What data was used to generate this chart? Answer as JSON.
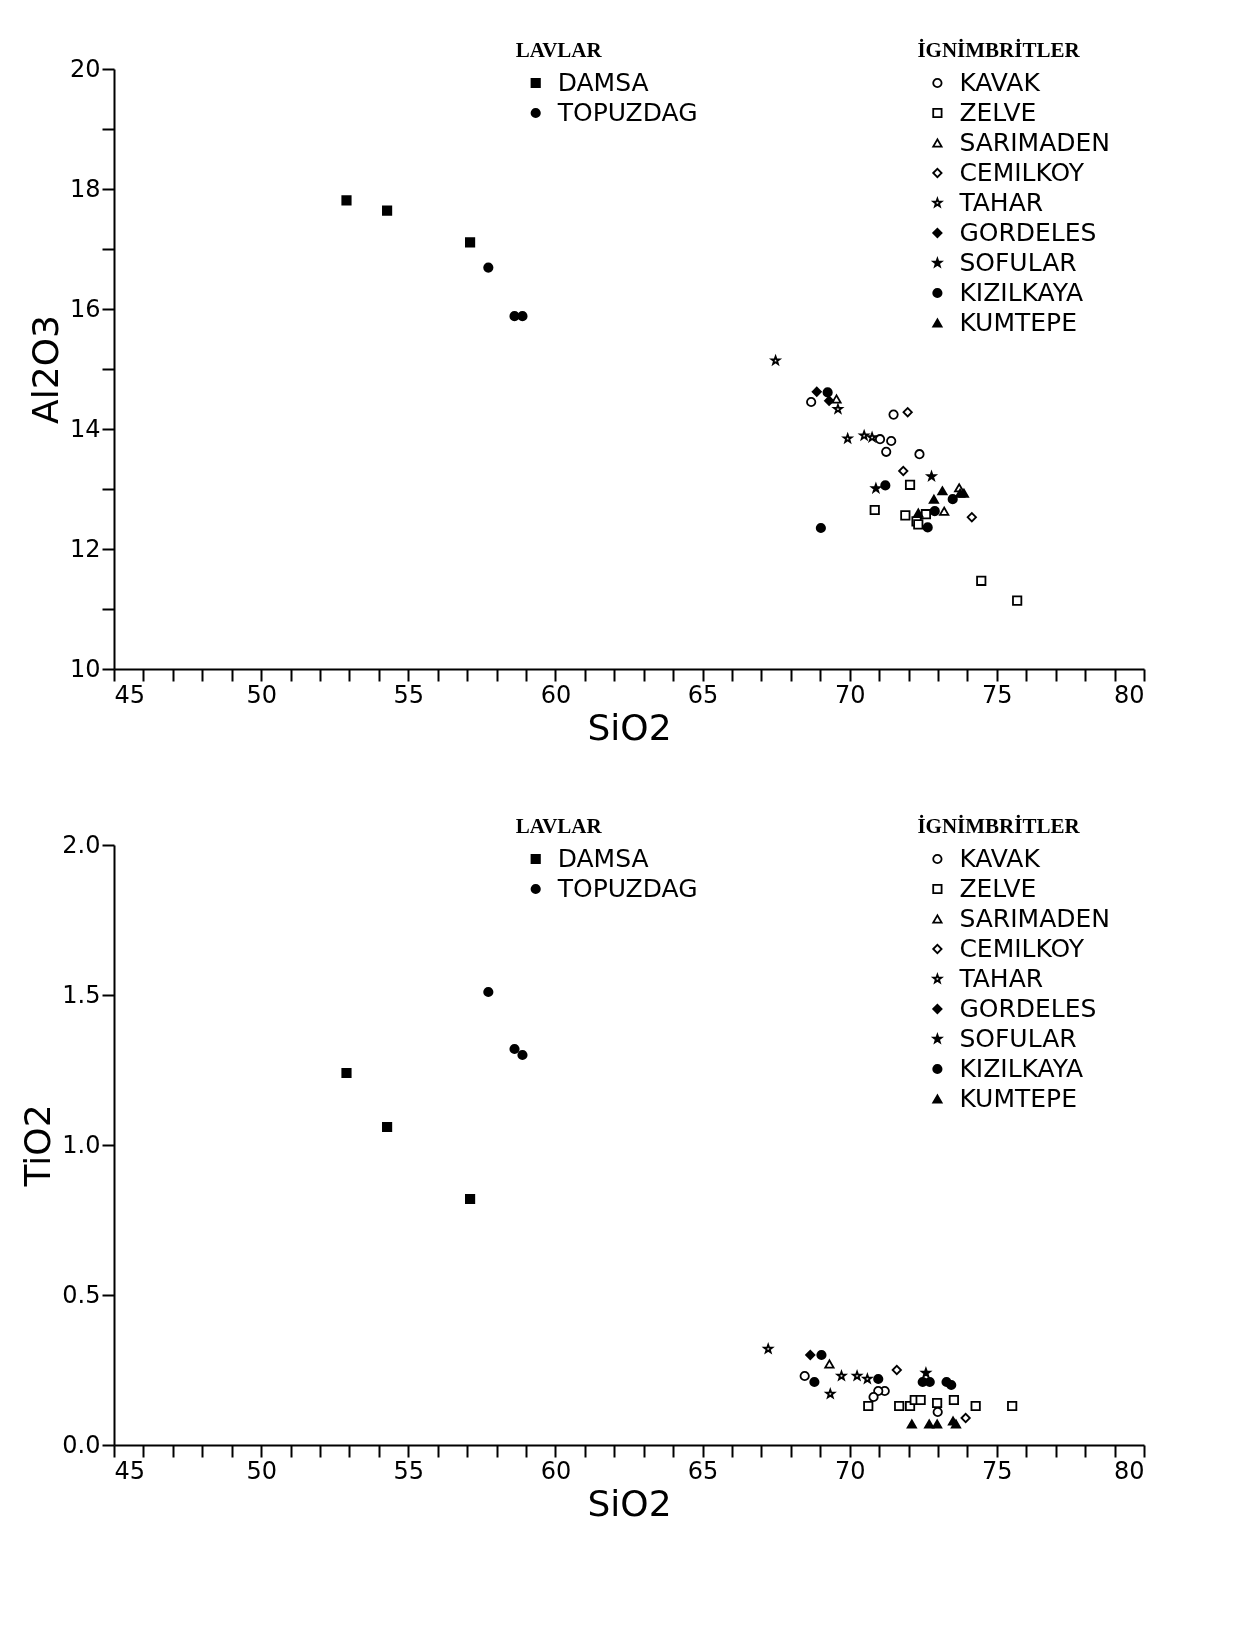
{
  "chart_data": [
    {
      "type": "scatter",
      "xlabel": "SiO2",
      "ylabel": "Al2O3",
      "xlim": [
        45,
        80
      ],
      "ylim": [
        10,
        20
      ],
      "grid": false,
      "legend": "top right",
      "legend_title": [
        "LAVLAR",
        "İGNİMBRİTLER"
      ],
      "xticks": [
        45,
        {
          "value": 46,
          "label": null
        },
        {
          "value": 47,
          "label": null
        },
        {
          "value": 48,
          "label": null
        },
        {
          "value": 49,
          "label": null
        },
        50,
        {
          "value": 51,
          "label": null
        },
        {
          "value": 52,
          "label": null
        },
        {
          "value": 53,
          "label": null
        },
        {
          "value": 54,
          "label": null
        },
        55,
        {
          "value": 56,
          "label": null
        },
        {
          "value": 57,
          "label": null
        },
        {
          "value": 58,
          "label": null
        },
        {
          "value": 59,
          "label": null
        },
        60,
        {
          "value": 61,
          "label": null
        },
        {
          "value": 62,
          "label": null
        },
        {
          "value": 63,
          "label": null
        },
        {
          "value": 64,
          "label": null
        },
        65,
        {
          "value": 66,
          "label": null
        },
        {
          "value": 67,
          "label": null
        },
        {
          "value": 68,
          "label": null
        },
        {
          "value": 69,
          "label": null
        },
        70,
        {
          "value": 71,
          "label": null
        },
        {
          "value": 72,
          "label": null
        },
        {
          "value": 73,
          "label": null
        },
        {
          "value": 74,
          "label": null
        },
        75,
        {
          "value": 76,
          "label": null
        },
        {
          "value": 77,
          "label": null
        },
        {
          "value": 78,
          "label": null
        },
        {
          "value": 79,
          "label": null
        },
        80
      ],
      "yticks": [
        10,
        {
          "value": 11,
          "label": null
        },
        12,
        {
          "value": 13,
          "label": null
        },
        14,
        {
          "value": 15,
          "label": null
        },
        16,
        {
          "value": 17,
          "label": null
        },
        18,
        {
          "value": 19,
          "label": null
        },
        20
      ],
      "series": [
        {
          "name": "DAMSA",
          "marker": "square",
          "color": "#000000",
          "x": [
            52.9,
            54.28,
            57.1
          ],
          "values": [
            17.81,
            17.64,
            17.11
          ]
        },
        {
          "name": "TOPUZDAG",
          "marker": "circle",
          "color": "#000000",
          "x": [
            57.72,
            58.61,
            58.88
          ],
          "values": [
            16.69,
            15.88,
            15.88
          ]
        },
        {
          "name": "KAVAK",
          "marker": "circle",
          "color": "#000000",
          "x": [
            68.69,
            71.49,
            71.03,
            71.41,
            71.24,
            72.37
          ],
          "values": [
            14.45,
            14.24,
            13.83,
            13.8,
            13.62,
            13.58
          ]
        },
        {
          "name": "ZELVE",
          "marker": "square",
          "color": "#000000",
          "x": [
            72.05,
            70.85,
            71.89,
            72.59,
            72.27,
            72.33,
            74.47,
            75.69
          ],
          "values": [
            13.07,
            12.65,
            12.56,
            12.58,
            12.46,
            12.41,
            11.47,
            11.14
          ]
        },
        {
          "name": "SARIMADEN",
          "marker": "triangle",
          "color": "#000000",
          "x": [
            69.55,
            73.21,
            73.72
          ],
          "values": [
            14.5,
            12.63,
            13.02
          ]
        },
        {
          "name": "CEMILKOY",
          "marker": "diamond",
          "color": "#000000",
          "x": [
            71.97,
            71.82,
            74.15
          ],
          "values": [
            14.28,
            13.3,
            12.53
          ]
        },
        {
          "name": "TAHAR",
          "marker": "star",
          "color": "#000000",
          "x": [
            67.48,
            69.6,
            69.93,
            70.49,
            70.76
          ],
          "values": [
            15.14,
            14.33,
            13.84,
            13.89,
            13.86
          ]
        },
        {
          "name": "GORDELES",
          "marker": "diamond",
          "color": "#000000",
          "x": [
            68.88,
            69.3
          ],
          "values": [
            14.62,
            14.47
          ]
        },
        {
          "name": "SOFULAR",
          "marker": "star",
          "color": "#000000",
          "x": [
            72.78,
            70.89
          ],
          "values": [
            13.21,
            13.01
          ]
        },
        {
          "name": "KIZILKAYA",
          "marker": "circle",
          "color": "#000000",
          "x": [
            69.25,
            71.21,
            72.65,
            72.89,
            73.5,
            69.02
          ],
          "values": [
            14.61,
            13.06,
            12.36,
            12.63,
            12.83,
            12.35
          ]
        },
        {
          "name": "KUMTEPE",
          "marker": "triangle",
          "color": "#000000",
          "x": [
            72.33,
            72.86,
            73.15,
            73.75,
            73.88
          ],
          "values": [
            12.6,
            12.83,
            12.97,
            12.93,
            12.93
          ]
        }
      ]
    },
    {
      "type": "scatter",
      "xlabel": "SiO2",
      "ylabel": "TiO2",
      "xlim": [
        45,
        80
      ],
      "ylim": [
        0,
        2
      ],
      "grid": false,
      "legend": "top right",
      "legend_title": [
        "LAVLAR",
        "İGNİMBRİTLER"
      ],
      "xticks": [
        45,
        {
          "value": 46,
          "label": null
        },
        {
          "value": 47,
          "label": null
        },
        {
          "value": 48,
          "label": null
        },
        {
          "value": 49,
          "label": null
        },
        50,
        {
          "value": 51,
          "label": null
        },
        {
          "value": 52,
          "label": null
        },
        {
          "value": 53,
          "label": null
        },
        {
          "value": 54,
          "label": null
        },
        55,
        {
          "value": 56,
          "label": null
        },
        {
          "value": 57,
          "label": null
        },
        {
          "value": 58,
          "label": null
        },
        {
          "value": 59,
          "label": null
        },
        60,
        {
          "value": 61,
          "label": null
        },
        {
          "value": 62,
          "label": null
        },
        {
          "value": 63,
          "label": null
        },
        {
          "value": 64,
          "label": null
        },
        65,
        {
          "value": 66,
          "label": null
        },
        {
          "value": 67,
          "label": null
        },
        {
          "value": 68,
          "label": null
        },
        {
          "value": 69,
          "label": null
        },
        70,
        {
          "value": 71,
          "label": null
        },
        {
          "value": 72,
          "label": null
        },
        {
          "value": 73,
          "label": null
        },
        {
          "value": 74,
          "label": null
        },
        75,
        {
          "value": 76,
          "label": null
        },
        {
          "value": 77,
          "label": null
        },
        {
          "value": 78,
          "label": null
        },
        {
          "value": 79,
          "label": null
        },
        80
      ],
      "yticks": [
        {
          "value": 0,
          "label": "0.0"
        },
        0.5,
        {
          "value": 1,
          "label": "1.0"
        },
        1.5,
        {
          "value": 2,
          "label": "2.0"
        }
      ],
      "series": [
        {
          "name": "DAMSA",
          "marker": "square",
          "color": "#000000",
          "x": [
            52.9,
            54.28,
            57.1
          ],
          "values": [
            1.24,
            1.06,
            0.82
          ]
        },
        {
          "name": "TOPUZDAG",
          "marker": "circle",
          "color": "#000000",
          "x": [
            57.72,
            58.61,
            58.88
          ],
          "values": [
            1.51,
            1.32,
            1.3
          ]
        },
        {
          "name": "KAVAK",
          "marker": "circle",
          "color": "#000000",
          "x": [
            68.47,
            71.19,
            70.97,
            70.81,
            72.99
          ],
          "values": [
            0.23,
            0.18,
            0.18,
            0.16,
            0.11
          ]
        },
        {
          "name": "ZELVE",
          "marker": "square",
          "color": "#000000",
          "x": [
            70.63,
            71.68,
            72.05,
            72.21,
            72.41,
            72.97,
            73.54,
            74.28,
            75.52
          ],
          "values": [
            0.13,
            0.13,
            0.13,
            0.15,
            0.15,
            0.14,
            0.15,
            0.13,
            0.13
          ]
        },
        {
          "name": "SARIMADEN",
          "marker": "triangle",
          "color": "#000000",
          "x": [
            69.31
          ],
          "values": [
            0.27
          ]
        },
        {
          "name": "CEMILKOY",
          "marker": "diamond",
          "color": "#000000",
          "x": [
            71.6,
            73.94
          ],
          "values": [
            0.25,
            0.09
          ]
        },
        {
          "name": "TAHAR",
          "marker": "star",
          "color": "#000000",
          "x": [
            67.23,
            69.72,
            69.34,
            70.25,
            70.6
          ],
          "values": [
            0.32,
            0.23,
            0.17,
            0.23,
            0.22
          ]
        },
        {
          "name": "GORDELES",
          "marker": "diamond",
          "color": "#000000",
          "x": [
            68.66
          ],
          "values": [
            0.3
          ]
        },
        {
          "name": "SOFULAR",
          "marker": "star",
          "color": "#000000",
          "x": [
            72.59
          ],
          "values": [
            0.24
          ]
        },
        {
          "name": "KIZILKAYA",
          "marker": "circle",
          "color": "#000000",
          "x": [
            69.04,
            68.8,
            70.97,
            72.48,
            72.72,
            73.29,
            73.45
          ],
          "values": [
            0.3,
            0.21,
            0.22,
            0.21,
            0.21,
            0.21,
            0.2
          ]
        },
        {
          "name": "KUMTEPE",
          "marker": "triangle",
          "color": "#000000",
          "x": [
            72.11,
            72.7,
            72.97,
            73.51,
            73.61
          ],
          "values": [
            0.07,
            0.07,
            0.07,
            0.08,
            0.07
          ]
        }
      ]
    }
  ]
}
